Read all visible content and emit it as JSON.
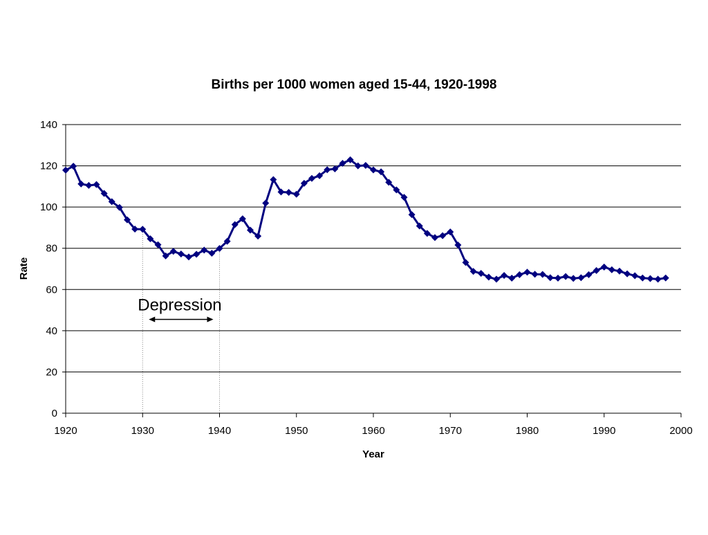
{
  "chart_data": {
    "type": "line",
    "title": "Births per 1000 women aged 15-44, 1920-1998",
    "xlabel": "Year",
    "ylabel": "Rate",
    "xlim": [
      1920,
      2000
    ],
    "ylim": [
      0,
      140
    ],
    "x_ticks": [
      1920,
      1930,
      1940,
      1950,
      1960,
      1970,
      1980,
      1990,
      2000
    ],
    "y_ticks": [
      0,
      20,
      40,
      60,
      80,
      100,
      120,
      140
    ],
    "grid": "horizontal",
    "marker": "diamond",
    "colors": {
      "series": "#000080",
      "grid": "#000000",
      "guide": "#808080"
    },
    "series": [
      {
        "x": [
          1920,
          1921,
          1922,
          1923,
          1924,
          1925,
          1926,
          1927,
          1928,
          1929,
          1930,
          1931,
          1932,
          1933,
          1934,
          1935,
          1936,
          1937,
          1938,
          1939,
          1940,
          1941,
          1942,
          1943,
          1944,
          1945,
          1946,
          1947,
          1948,
          1949,
          1950,
          1951,
          1952,
          1953,
          1954,
          1955,
          1956,
          1957,
          1958,
          1959,
          1960,
          1961,
          1962,
          1963,
          1964,
          1965,
          1966,
          1967,
          1968,
          1969,
          1970,
          1971,
          1972,
          1973,
          1974,
          1975,
          1976,
          1977,
          1978,
          1979,
          1980,
          1981,
          1982,
          1983,
          1984,
          1985,
          1986,
          1987,
          1988,
          1989,
          1990,
          1991,
          1992,
          1993,
          1994,
          1995,
          1996,
          1997,
          1998
        ],
        "values": [
          117.9,
          119.8,
          111.2,
          110.5,
          110.9,
          106.6,
          102.6,
          99.8,
          93.8,
          89.3,
          89.2,
          84.6,
          81.7,
          76.3,
          78.5,
          77.2,
          75.8,
          77.1,
          79.1,
          77.6,
          79.9,
          83.4,
          91.5,
          94.3,
          88.8,
          85.9,
          101.9,
          113.3,
          107.3,
          107.1,
          106.2,
          111.5,
          113.9,
          115.2,
          118.1,
          118.5,
          121.2,
          122.9,
          120.0,
          120.2,
          118.0,
          117.1,
          112.0,
          108.3,
          104.7,
          96.3,
          90.8,
          87.2,
          85.2,
          86.1,
          87.9,
          81.6,
          73.1,
          68.8,
          67.8,
          66.0,
          65.0,
          66.8,
          65.5,
          67.2,
          68.4,
          67.4,
          67.3,
          65.7,
          65.5,
          66.3,
          65.4,
          65.7,
          67.2,
          69.2,
          70.9,
          69.6,
          68.9,
          67.6,
          66.7,
          65.6,
          65.3,
          65.0,
          65.6
        ]
      }
    ],
    "annotations": [
      {
        "text": "Depression",
        "from": 1930,
        "to": 1940,
        "arrow_y": 45.5
      }
    ]
  }
}
